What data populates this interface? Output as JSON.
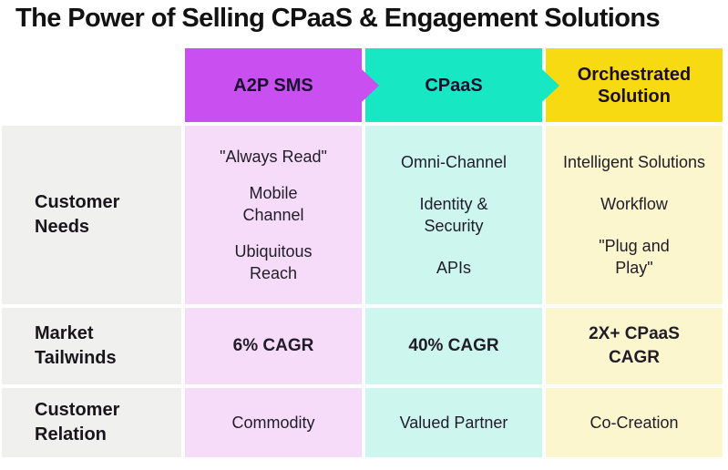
{
  "title": "The Power of Selling CPaaS & Engagement Solutions",
  "colors": {
    "a2p_header": "#c94ff0",
    "cpaas_header": "#17e7c3",
    "orch_header": "#f8da12",
    "a2p_cell": "#f6dcf9",
    "cpaas_cell": "#cdf7ee",
    "orch_cell": "#fbf6cd",
    "label_cell": "#f0f0ee"
  },
  "row_labels": {
    "needs": "Customer\nNeeds",
    "tailwinds": "Market\nTailwinds",
    "relation": "Customer\nRelation"
  },
  "columns": [
    {
      "header": "A2P SMS",
      "needs": [
        "\"Always Read\"",
        "Mobile\nChannel",
        "Ubiquitous\nReach"
      ],
      "tailwind": "6% CAGR",
      "relation": "Commodity"
    },
    {
      "header": "CPaaS",
      "needs": [
        "Omni-Channel",
        "Identity &\nSecurity",
        "APIs"
      ],
      "tailwind": "40% CAGR",
      "relation": "Valued Partner"
    },
    {
      "header": "Orchestrated\nSolution",
      "needs": [
        "Intelligent Solutions",
        "Workflow",
        "\"Plug and\nPlay\""
      ],
      "tailwind": "2X+ CPaaS\nCAGR",
      "relation": "Co-Creation"
    }
  ]
}
